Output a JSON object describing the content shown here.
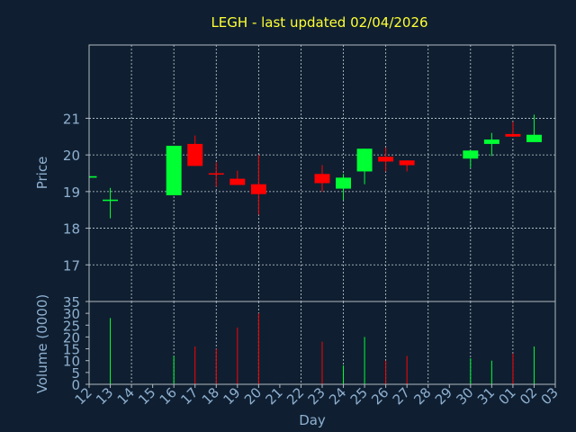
{
  "chart_data": {
    "type": "candlestick",
    "title": "LEGH - last updated 02/04/2026",
    "x_label": "Day",
    "y_label": "Price",
    "categories": [
      "12",
      "13",
      "14",
      "15",
      "16",
      "17",
      "18",
      "19",
      "20",
      "21",
      "22",
      "23",
      "24",
      "25",
      "26",
      "27",
      "28",
      "29",
      "30",
      "31",
      "01",
      "02",
      "03"
    ],
    "open": [
      19.38,
      18.77,
      null,
      null,
      18.9,
      20.3,
      19.5,
      19.35,
      19.2,
      null,
      null,
      19.48,
      19.08,
      19.55,
      19.95,
      19.85,
      null,
      null,
      19.9,
      20.3,
      20.57,
      20.35,
      null
    ],
    "high": [
      19.42,
      19.1,
      null,
      null,
      20.25,
      20.53,
      19.8,
      19.57,
      20.0,
      null,
      null,
      19.72,
      19.48,
      20.17,
      20.2,
      19.85,
      null,
      null,
      20.12,
      20.6,
      20.9,
      21.1,
      null
    ],
    "low": [
      19.38,
      18.27,
      null,
      null,
      18.9,
      19.7,
      19.13,
      19.18,
      18.37,
      null,
      null,
      19.0,
      18.77,
      19.2,
      19.55,
      19.55,
      null,
      null,
      19.65,
      19.97,
      20.5,
      20.35,
      null
    ],
    "close": [
      19.42,
      18.78,
      null,
      null,
      20.25,
      19.7,
      19.47,
      19.18,
      18.93,
      null,
      null,
      19.23,
      19.38,
      20.17,
      19.82,
      19.72,
      null,
      null,
      20.12,
      20.42,
      20.5,
      20.55,
      null
    ],
    "ylim": [
      16,
      23
    ],
    "yticks": [
      17,
      18,
      19,
      20,
      21
    ],
    "up_color": "#00ff33",
    "down_color": "#ff0000",
    "grid": true,
    "volume": {
      "y_label": "Volume (0000)",
      "values": [
        0,
        28,
        null,
        null,
        12,
        16,
        15,
        24,
        30,
        null,
        null,
        18,
        8,
        20,
        10,
        12,
        null,
        null,
        11,
        10,
        13,
        16,
        null
      ],
      "ylim": [
        0,
        35
      ],
      "yticks": [
        0,
        5,
        10,
        15,
        20,
        25,
        30,
        35
      ]
    }
  }
}
